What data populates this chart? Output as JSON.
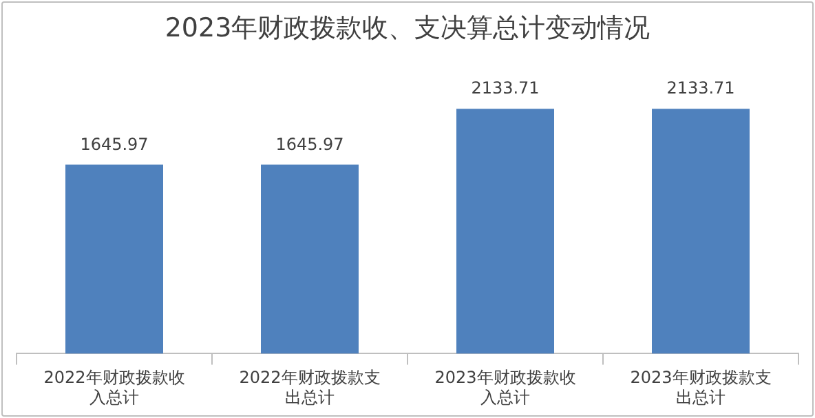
{
  "chart_data": {
    "type": "bar",
    "title": "2023年财政拨款收、支决算总计变动情况",
    "categories": [
      "2022年财政拨款收入总计",
      "2022年财政拨款支出总计",
      "2023年财政拨款收入总计",
      "2023年财政拨款支出总计"
    ],
    "values": [
      1645.97,
      1645.97,
      2133.71,
      2133.71
    ],
    "color": "#4f81bd",
    "data_labels": true
  }
}
